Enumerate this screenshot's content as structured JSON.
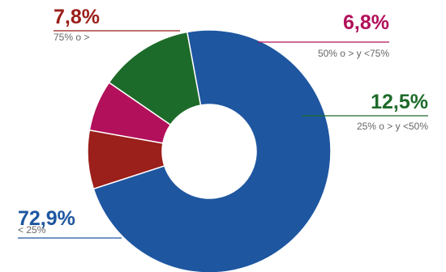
{
  "colors": {
    "blue": "#1e56a0",
    "red": "#9b1f1a",
    "magenta": "#b2105a",
    "green": "#1d6b2a",
    "sublabel": "#666666"
  },
  "chart_data": {
    "type": "pie",
    "variant": "donut",
    "title": "",
    "legend": "none",
    "slices": [
      {
        "value": 7.8,
        "label": "7,8%",
        "category": "75% o >",
        "color": "#9b1f1a"
      },
      {
        "value": 6.8,
        "label": "6,8%",
        "category": "50% o > y <75%",
        "color": "#b2105a"
      },
      {
        "value": 12.5,
        "label": "12,5%",
        "category": "25% o > y <50%",
        "color": "#1d6b2a"
      },
      {
        "value": 72.9,
        "label": "72,9%",
        "category": "< 25%",
        "color": "#1e56a0"
      }
    ]
  }
}
